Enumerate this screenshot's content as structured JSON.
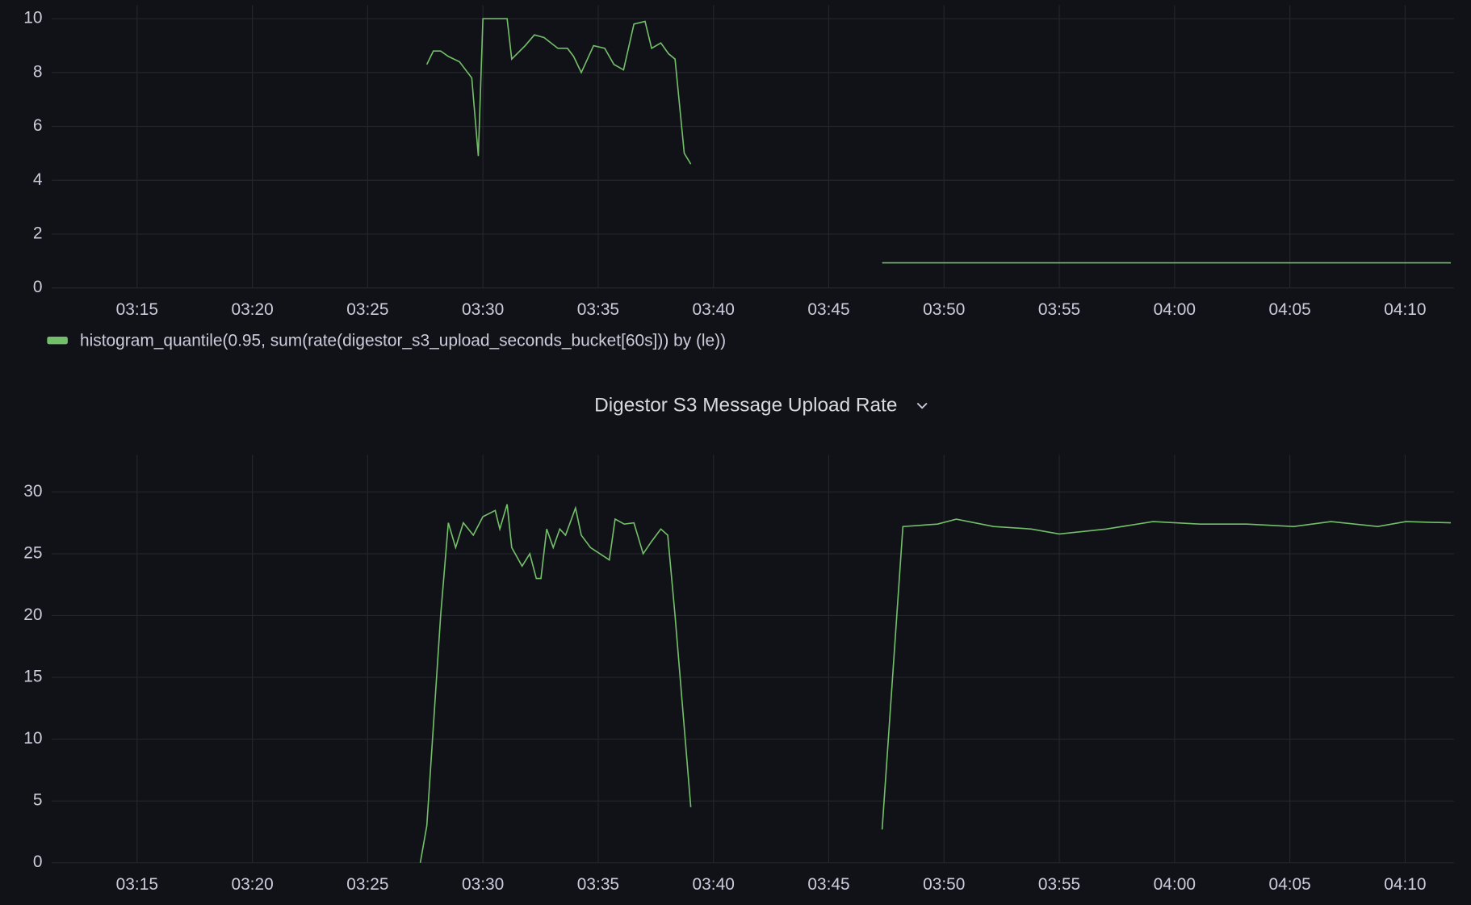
{
  "chart_data": [
    {
      "type": "line",
      "legend": "bottom-left",
      "ylim": [
        0,
        10.5
      ],
      "yticks": [
        0,
        2,
        4,
        6,
        8,
        10
      ],
      "xlim": [
        "03:11:18",
        "04:12:07"
      ],
      "xticks": [
        "03:15",
        "03:20",
        "03:25",
        "03:30",
        "03:35",
        "03:40",
        "03:45",
        "03:50",
        "03:55",
        "04:00",
        "04:05",
        "04:10"
      ],
      "grid": true,
      "x": [
        "03:27:34",
        "03:27:51",
        "03:28:10",
        "03:28:30",
        "03:28:59",
        "03:29:31",
        "03:29:48",
        "03:30:00",
        "03:30:32",
        "03:31:03",
        "03:31:15",
        "03:31:50",
        "03:32:14",
        "03:32:39",
        "03:33:15",
        "03:33:40",
        "03:33:56",
        "03:34:16",
        "03:34:48",
        "03:35:17",
        "03:35:41",
        "03:36:06",
        "03:36:33",
        "03:37:02",
        "03:37:19",
        "03:37:43",
        "03:38:03",
        "03:38:20",
        "03:38:44",
        "03:39:01",
        "03:43:00",
        "03:47:19",
        "04:11:59"
      ],
      "series": [
        {
          "name": "histogram_quantile(0.95, sum(rate(digestor_s3_upload_seconds_bucket[60s])) by (le))",
          "color": "#73bf69",
          "values": [
            8.3,
            8.8,
            8.8,
            8.6,
            8.4,
            7.8,
            4.9,
            10,
            10,
            10,
            8.5,
            9.0,
            9.4,
            9.3,
            8.9,
            8.9,
            8.6,
            8.0,
            9.0,
            8.9,
            8.3,
            8.1,
            9.8,
            9.9,
            8.9,
            9.1,
            8.7,
            8.5,
            5.0,
            4.6,
            null,
            0.93,
            0.93
          ]
        }
      ]
    },
    {
      "type": "line",
      "title": "Digestor S3 Message Upload Rate",
      "ylim": [
        0,
        33
      ],
      "yticks": [
        0,
        5,
        10,
        15,
        20,
        25,
        30
      ],
      "xlim": [
        "03:11:18",
        "04:12:07"
      ],
      "xticks": [
        "03:15",
        "03:20",
        "03:25",
        "03:30",
        "03:35",
        "03:40",
        "03:45",
        "03:50",
        "03:55",
        "04:00",
        "04:05",
        "04:10"
      ],
      "grid": true,
      "x": [
        "03:27:17",
        "03:27:34",
        "03:28:10",
        "03:28:30",
        "03:28:49",
        "03:29:09",
        "03:29:35",
        "03:30:00",
        "03:30:32",
        "03:30:44",
        "03:31:03",
        "03:31:15",
        "03:31:42",
        "03:32:02",
        "03:32:19",
        "03:32:31",
        "03:32:46",
        "03:33:03",
        "03:33:20",
        "03:33:35",
        "03:34:01",
        "03:34:16",
        "03:34:40",
        "03:35:29",
        "03:35:44",
        "03:36:08",
        "03:36:33",
        "03:36:57",
        "03:37:19",
        "03:37:43",
        "03:38:01",
        "03:38:20",
        "03:39:01",
        "03:43:00",
        "03:47:19",
        "03:48:13",
        "03:49:43",
        "03:50:32",
        "03:52:09",
        "03:53:47",
        "03:55:00",
        "03:57:02",
        "03:59:04",
        "04:01:06",
        "04:03:08",
        "04:05:10",
        "04:06:47",
        "04:08:49",
        "04:10:02",
        "04:11:59"
      ],
      "series": [
        {
          "color": "#73bf69",
          "values": [
            0,
            3,
            20,
            27.5,
            25.5,
            27.5,
            26.5,
            28,
            28.5,
            27,
            29,
            25.5,
            24,
            25,
            23,
            23,
            27,
            25.5,
            27,
            26.5,
            28.7,
            26.5,
            25.5,
            24.5,
            27.8,
            27.4,
            27.5,
            25,
            26,
            27,
            26.5,
            20,
            4.5,
            null,
            2.7,
            27.2,
            27.4,
            27.8,
            27.2,
            27.0,
            26.6,
            27.0,
            27.6,
            27.4,
            27.4,
            27.2,
            27.6,
            27.2,
            27.6,
            27.5
          ]
        }
      ]
    }
  ]
}
